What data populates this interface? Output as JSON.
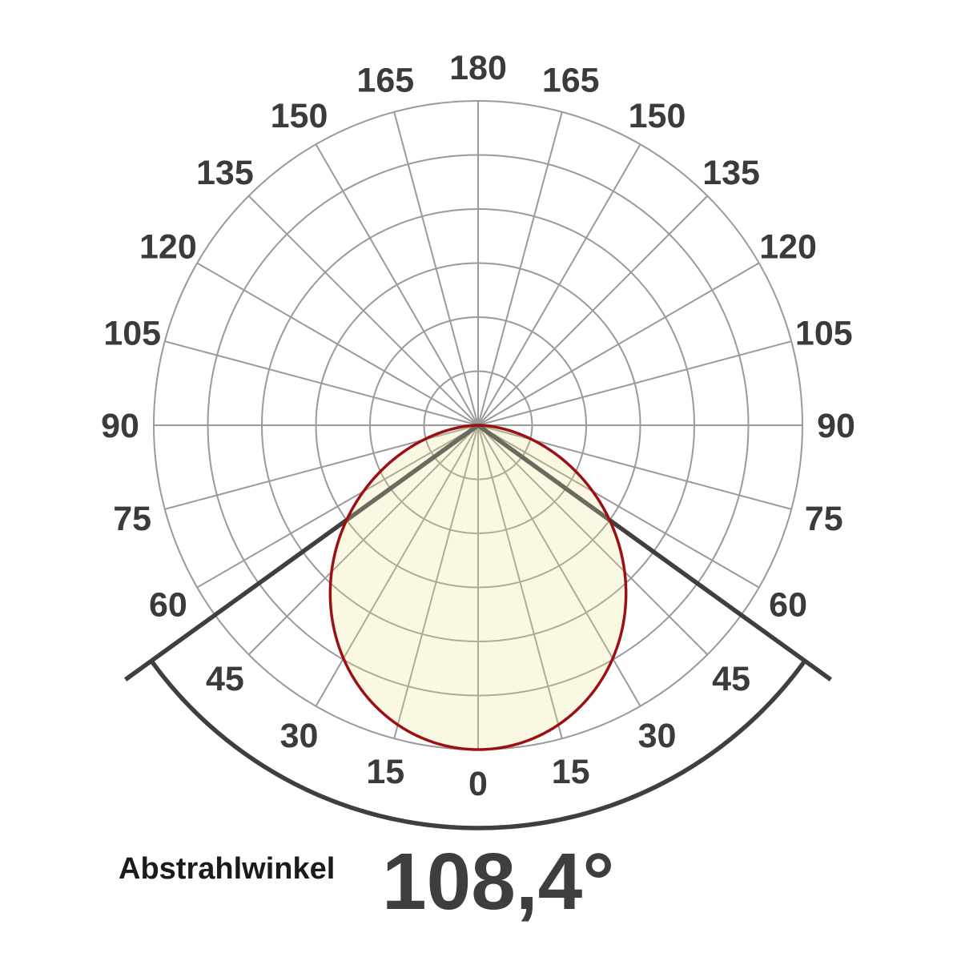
{
  "caption": {
    "label": "Abstrahlwinkel",
    "value": "108,4°"
  },
  "chart_data": {
    "type": "polar",
    "subtype": "luminous-intensity-distribution",
    "title": "Abstrahlwinkel",
    "beam_angle_value_text": "108,4°",
    "beam_angle_deg": 108.4,
    "beam_half_angle_deg": 54.2,
    "half_intensity_level": 0.5,
    "peak_relative_intensity": 1.0,
    "curve_model": "cos_power",
    "angle_unit": "deg",
    "angle_tick_step_deg": 15,
    "angle_labels": [
      0,
      15,
      30,
      45,
      60,
      75,
      90,
      105,
      120,
      135,
      150,
      165,
      180
    ],
    "rings": 6,
    "grid": "on",
    "legend": "none",
    "samples": {
      "angle_deg": [
        0,
        15,
        30,
        45,
        54.2,
        60,
        75,
        90
      ],
      "relative_intensity": [
        1.0,
        0.96,
        0.83,
        0.64,
        0.5,
        0.41,
        0.17,
        0.0
      ]
    },
    "colors": {
      "background": "#ffffff",
      "grid": "#9a9a9a",
      "grid_inside_fill": "#aeac92",
      "fill": "#faf8e3",
      "curve_outline": "#9b1013",
      "beam_line": "#3f3f3f",
      "beam_line_inside_fill": "#6b6a5e",
      "beam_arc": "#3f3f3f",
      "tick_text": "#3b3b3b",
      "caption_label_color": "#1b1b1b",
      "caption_value_color": "#3e3e40"
    }
  }
}
